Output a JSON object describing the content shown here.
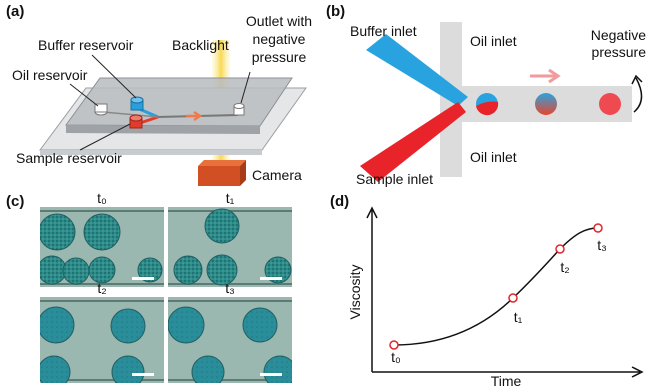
{
  "panel_a": {
    "label": "(a)",
    "buffer_reservoir": "Buffer reservoir",
    "backlight": "Backlight",
    "outlet": [
      "Outlet with",
      "negative",
      "pressure"
    ],
    "oil_reservoir": "Oil reservoir",
    "sample_reservoir": "Sample reservoir",
    "camera": "Camera"
  },
  "panel_b": {
    "label": "(b)",
    "buffer_inlet": "Buffer inlet",
    "oil_inlet_top": "Oil inlet",
    "negative_pressure": [
      "Negative",
      "pressure"
    ],
    "oil_inlet_bottom": "Oil inlet",
    "sample_inlet": "Sample inlet"
  },
  "panel_c": {
    "label": "(c)",
    "time_labels": [
      "t₀",
      "t₁",
      "t₂",
      "t₃"
    ]
  },
  "panel_d": {
    "label": "(d)",
    "y_axis_label": "Viscosity",
    "x_axis_label": "Time",
    "point_labels": [
      "t₀",
      "t₁",
      "t₂",
      "t₃"
    ]
  }
}
